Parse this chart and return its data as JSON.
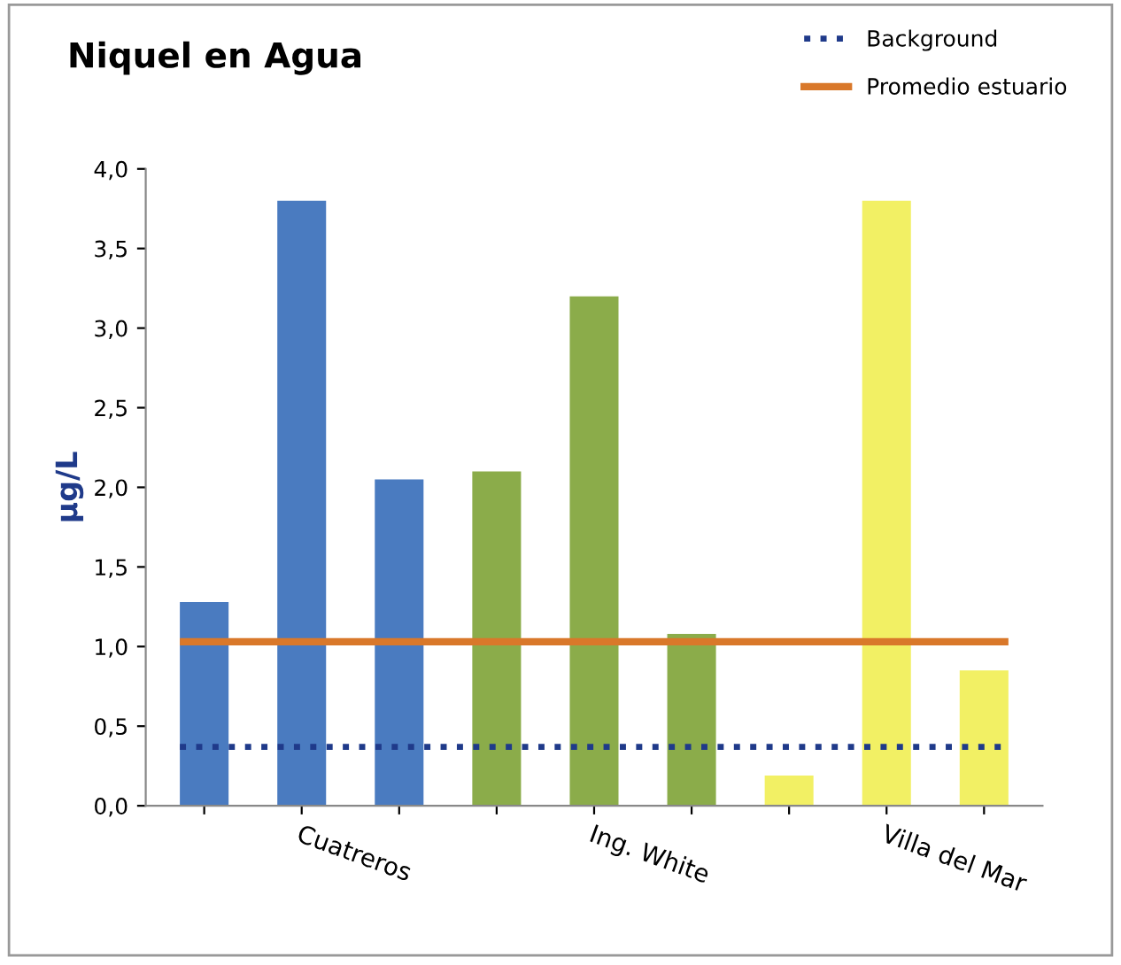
{
  "chart_data": {
    "type": "bar",
    "title": "Niquel en Agua",
    "ylabel": "μg/L",
    "categories": [
      null,
      "Cuatreros",
      null,
      null,
      "Ing. White",
      null,
      null,
      "Villa del Mar",
      null
    ],
    "values": [
      1.28,
      3.8,
      2.05,
      2.1,
      3.2,
      1.08,
      0.19,
      3.8,
      0.85
    ],
    "colors": [
      "#4a7bc0",
      "#4a7bc0",
      "#4a7bc0",
      "#8bac4a",
      "#8bac4a",
      "#8bac4a",
      "#f2f064",
      "#f2f064",
      "#f2f064"
    ],
    "ylim": [
      0,
      4
    ],
    "yticks": [
      {
        "value": 0,
        "label": "0,0"
      },
      {
        "value": 0.5,
        "label": "0,5"
      },
      {
        "value": 1,
        "label": "1,0"
      },
      {
        "value": 1.5,
        "label": "1,5"
      },
      {
        "value": 2,
        "label": "2,0"
      },
      {
        "value": 2.5,
        "label": "2,5"
      },
      {
        "value": 3,
        "label": "3,0"
      },
      {
        "value": 3.5,
        "label": "3,5"
      },
      {
        "value": 4,
        "label": "4,0"
      }
    ],
    "ref_lines": [
      {
        "axis": "y",
        "value": 0.37,
        "label": "Background",
        "color": "#1f3a8a",
        "line_style": "dotted"
      },
      {
        "axis": "y",
        "value": 1.03,
        "label": "Promedio estuario",
        "color": "#d9782a",
        "line_style": "solid"
      }
    ],
    "legend": "top right",
    "grid": false
  }
}
